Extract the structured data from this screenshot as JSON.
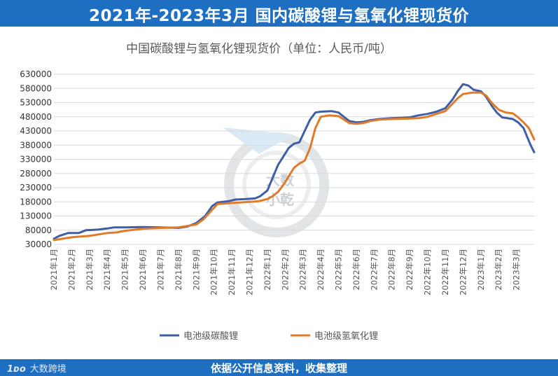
{
  "banner": {
    "title": "2021年-2023年3月  国内碳酸锂与氢氧化锂现货价"
  },
  "footer": {
    "text": "依据公开信息资料，收集整理",
    "logo_mark": "1ᴅᴏ",
    "logo_text": "大数跨境"
  },
  "watermark": {
    "line1": "大数",
    "line2": "小乾"
  },
  "colors": {
    "banner": "#1e6fc1",
    "carbonate": "#3e5ea8",
    "hydroxide": "#e07b2a",
    "grid": "#dadada",
    "axis_text": "#555555"
  },
  "chart_data": {
    "type": "line",
    "title": "中国碳酸锂与氢氧化锂现货价（单位：人民币/吨）",
    "x": [
      "2021年1月",
      "2021年2月",
      "2021年3月",
      "2021年4月",
      "2021年5月",
      "2021年6月",
      "2021年7月",
      "2021年8月",
      "2021年9月",
      "2021年10月",
      "2021年11月",
      "2021年12月",
      "2022年1月",
      "2022年2月",
      "2022年3月",
      "2022年4月",
      "2022年5月",
      "2022年6月",
      "2022年7月",
      "2022年8月",
      "2022年9月",
      "2022年10月",
      "2022年11月",
      "2022年12月",
      "2023年1月",
      "2023年2月",
      "2023年3月"
    ],
    "y_ticks": [
      "30000",
      "80000",
      "130000",
      "180000",
      "230000",
      "280000",
      "330000",
      "380000",
      "430000",
      "480000",
      "530000",
      "580000",
      "630000"
    ],
    "ylim": [
      30000,
      630000
    ],
    "legend_position": "bottom",
    "series": [
      {
        "name": "电池级碳酸锂",
        "points": [
          [
            0,
            50000
          ],
          [
            0.3,
            60000
          ],
          [
            0.8,
            70000
          ],
          [
            1.4,
            70000
          ],
          [
            1.8,
            80000
          ],
          [
            2.5,
            82000
          ],
          [
            3,
            86000
          ],
          [
            3.4,
            90000
          ],
          [
            4,
            90000
          ],
          [
            5,
            91000
          ],
          [
            6,
            90000
          ],
          [
            7,
            88000
          ],
          [
            7.5,
            93000
          ],
          [
            8,
            105000
          ],
          [
            8.5,
            130000
          ],
          [
            8.9,
            165000
          ],
          [
            9.2,
            178000
          ],
          [
            9.8,
            182000
          ],
          [
            10.2,
            188000
          ],
          [
            10.8,
            190000
          ],
          [
            11.3,
            192000
          ],
          [
            11.6,
            200000
          ],
          [
            12,
            220000
          ],
          [
            12.3,
            265000
          ],
          [
            12.6,
            310000
          ],
          [
            12.9,
            340000
          ],
          [
            13.2,
            370000
          ],
          [
            13.5,
            385000
          ],
          [
            13.8,
            390000
          ],
          [
            14.1,
            430000
          ],
          [
            14.4,
            470000
          ],
          [
            14.7,
            495000
          ],
          [
            15,
            498000
          ],
          [
            15.6,
            500000
          ],
          [
            16,
            495000
          ],
          [
            16.3,
            480000
          ],
          [
            16.6,
            465000
          ],
          [
            17,
            460000
          ],
          [
            17.4,
            462000
          ],
          [
            17.8,
            468000
          ],
          [
            18.3,
            472000
          ],
          [
            19,
            475000
          ],
          [
            20,
            478000
          ],
          [
            20.5,
            485000
          ],
          [
            21,
            490000
          ],
          [
            21.5,
            498000
          ],
          [
            22,
            510000
          ],
          [
            22.4,
            540000
          ],
          [
            22.7,
            570000
          ],
          [
            23,
            595000
          ],
          [
            23.3,
            590000
          ],
          [
            23.6,
            575000
          ],
          [
            24,
            570000
          ],
          [
            24.3,
            550000
          ],
          [
            24.6,
            520000
          ],
          [
            24.9,
            495000
          ],
          [
            25.2,
            478000
          ],
          [
            25.5,
            475000
          ],
          [
            25.8,
            472000
          ],
          [
            26.1,
            460000
          ],
          [
            26.4,
            440000
          ],
          [
            26.6,
            410000
          ],
          [
            26.8,
            380000
          ],
          [
            27,
            355000
          ]
        ]
      },
      {
        "name": "电池级氢氧化锂",
        "points": [
          [
            0,
            45000
          ],
          [
            0.5,
            50000
          ],
          [
            1,
            55000
          ],
          [
            1.5,
            58000
          ],
          [
            2,
            60000
          ],
          [
            2.5,
            65000
          ],
          [
            3,
            70000
          ],
          [
            3.5,
            72000
          ],
          [
            4,
            78000
          ],
          [
            5,
            85000
          ],
          [
            6,
            88000
          ],
          [
            7,
            90000
          ],
          [
            7.5,
            95000
          ],
          [
            8,
            100000
          ],
          [
            8.4,
            118000
          ],
          [
            8.8,
            145000
          ],
          [
            9.2,
            172000
          ],
          [
            9.8,
            175000
          ],
          [
            10.5,
            178000
          ],
          [
            11,
            180000
          ],
          [
            11.5,
            182000
          ],
          [
            12,
            190000
          ],
          [
            12.3,
            200000
          ],
          [
            12.6,
            215000
          ],
          [
            12.9,
            240000
          ],
          [
            13.2,
            270000
          ],
          [
            13.5,
            300000
          ],
          [
            13.8,
            315000
          ],
          [
            14.1,
            325000
          ],
          [
            14.4,
            370000
          ],
          [
            14.7,
            440000
          ],
          [
            15,
            480000
          ],
          [
            15.5,
            485000
          ],
          [
            16,
            482000
          ],
          [
            16.3,
            470000
          ],
          [
            16.6,
            458000
          ],
          [
            17,
            455000
          ],
          [
            17.4,
            458000
          ],
          [
            17.8,
            465000
          ],
          [
            18.3,
            470000
          ],
          [
            19,
            472000
          ],
          [
            20,
            474000
          ],
          [
            20.5,
            475000
          ],
          [
            21,
            480000
          ],
          [
            21.5,
            490000
          ],
          [
            22,
            500000
          ],
          [
            22.4,
            525000
          ],
          [
            22.7,
            545000
          ],
          [
            23,
            560000
          ],
          [
            23.5,
            565000
          ],
          [
            24,
            565000
          ],
          [
            24.3,
            555000
          ],
          [
            24.6,
            530000
          ],
          [
            25,
            505000
          ],
          [
            25.4,
            495000
          ],
          [
            25.8,
            492000
          ],
          [
            26.1,
            478000
          ],
          [
            26.4,
            460000
          ],
          [
            26.7,
            440000
          ],
          [
            27,
            400000
          ]
        ]
      }
    ]
  }
}
